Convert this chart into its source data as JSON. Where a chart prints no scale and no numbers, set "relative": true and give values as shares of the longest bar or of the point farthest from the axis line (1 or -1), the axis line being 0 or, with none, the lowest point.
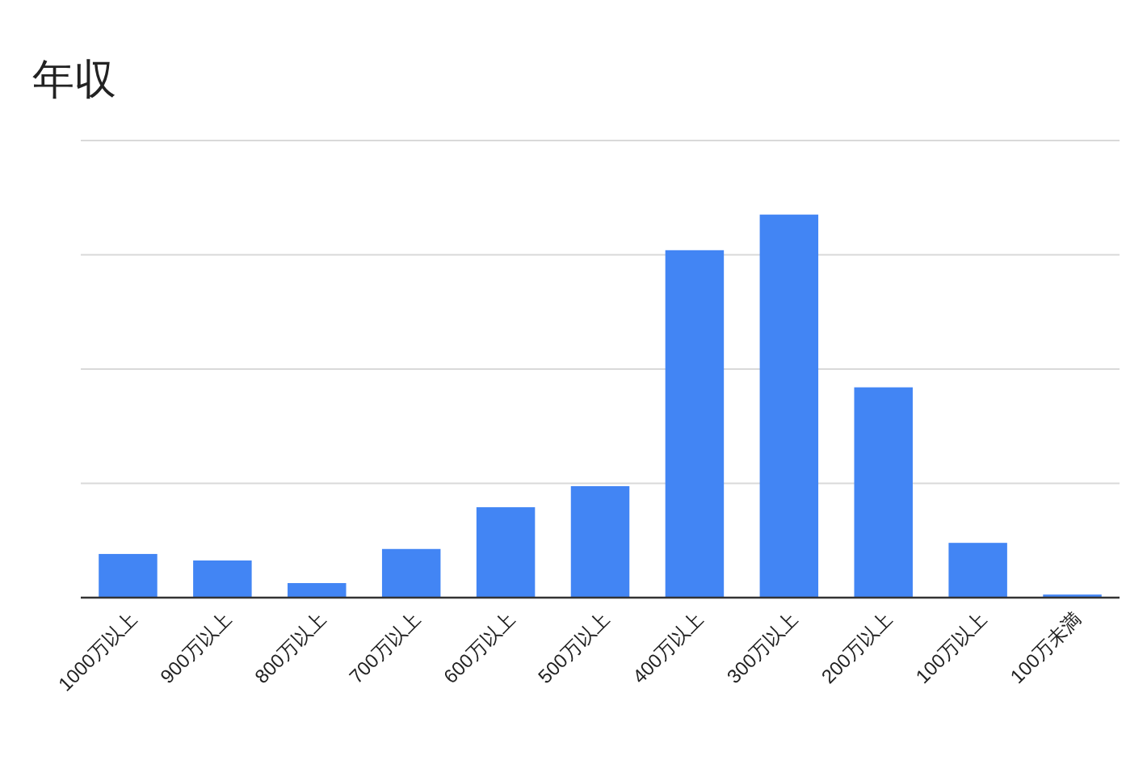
{
  "chart_data": {
    "type": "bar",
    "title": "年収",
    "relative": true,
    "grid": true,
    "categories": [
      "1000万以上",
      "900万以上",
      "800万以上",
      "700万以上",
      "600万以上",
      "500万以上",
      "400万以上",
      "300万以上",
      "200万以上",
      "100万以上",
      "100万未満"
    ],
    "values": [
      0.114,
      0.097,
      0.038,
      0.127,
      0.236,
      0.291,
      0.907,
      1,
      0.549,
      0.143,
      0.008
    ],
    "color": "#4285f4"
  }
}
